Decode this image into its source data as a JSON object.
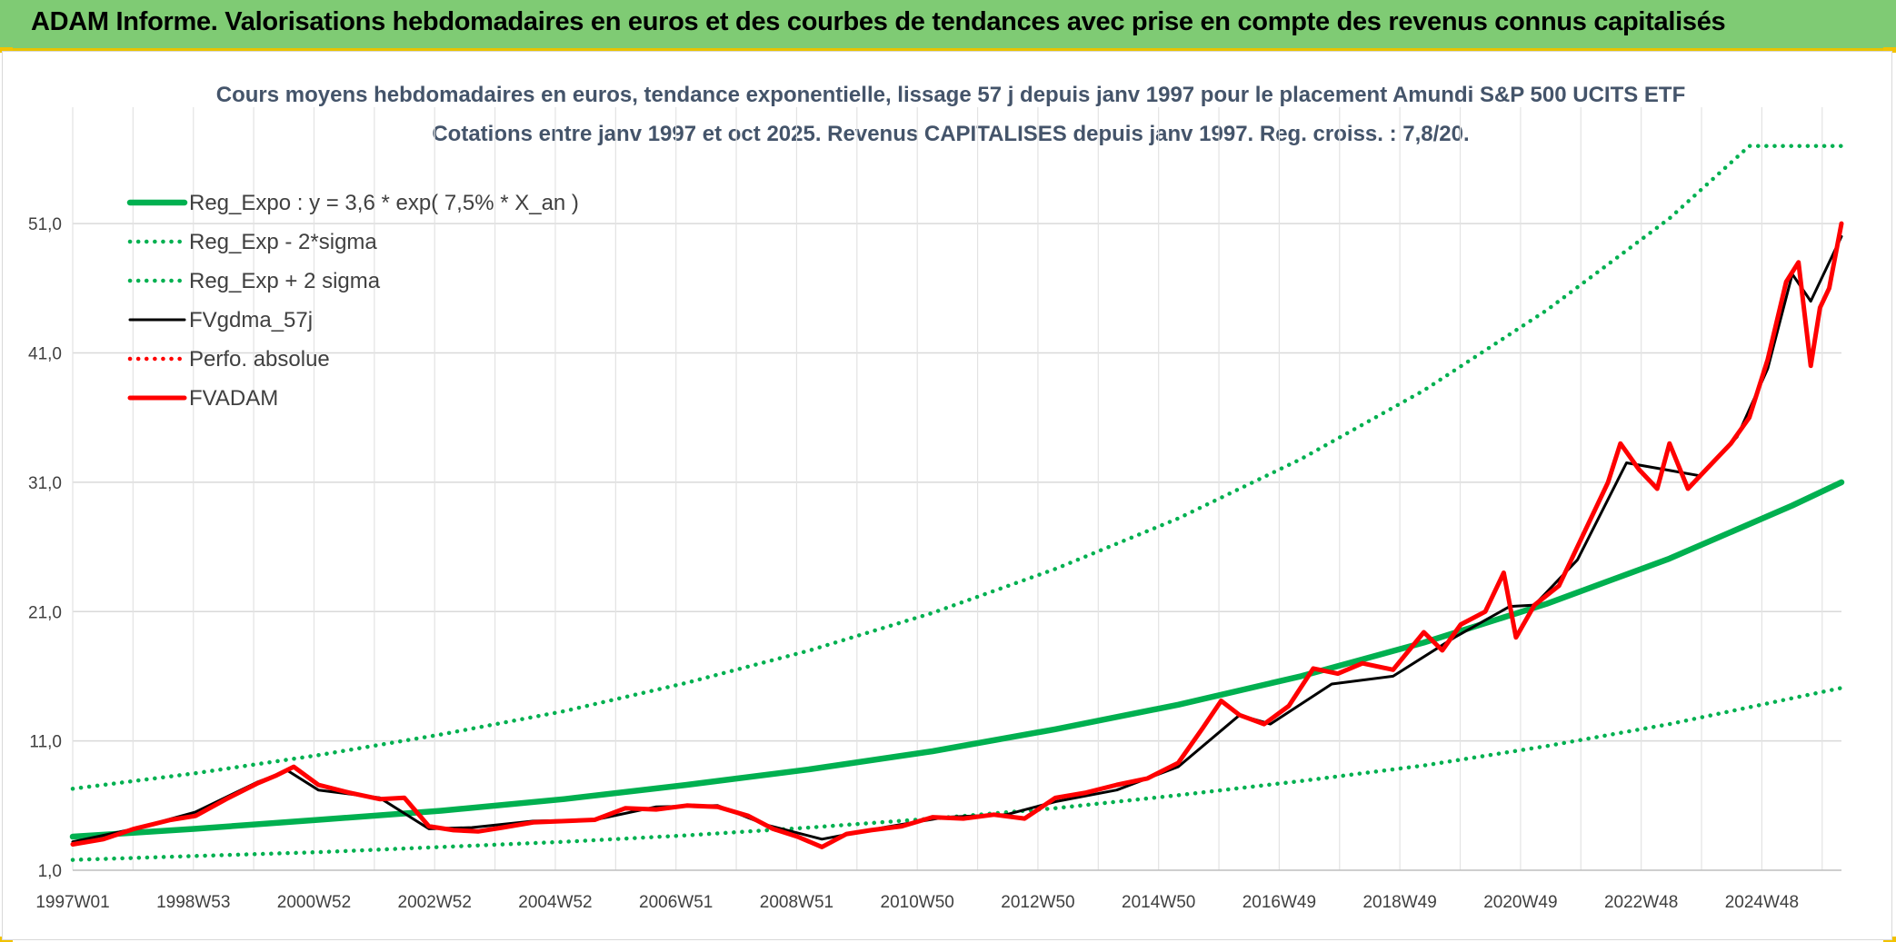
{
  "header": {
    "banner_title": "ADAM Informe. Valorisations hebdomadaires en euros et des courbes de tendances avec prise en compte des revenus connus capitalisés"
  },
  "colors": {
    "banner": "#7fcb74",
    "accent_yellow": "#f2c200",
    "trend": "#00b050",
    "gdma": "#000000",
    "adam": "#ff0000",
    "title_text": "#44546a"
  },
  "chart_data": {
    "type": "line",
    "title": "Cours moyens hebdomadaires en euros, tendance exponentielle, lissage 57 j depuis janv 1997 pour le placement Amundi S&P 500 UCITS ETF",
    "subtitle": "Cotations entre janv 1997 et oct 2025. Revenus CAPITALISES depuis janv 1997. Reg. croiss. : 7,8/20.",
    "x_tick_labels": [
      "1997W01",
      "1998W53",
      "2000W52",
      "2002W52",
      "2004W52",
      "2006W51",
      "2008W51",
      "2010W50",
      "2012W50",
      "2014W50",
      "2016W49",
      "2018W49",
      "2020W49",
      "2022W48",
      "2024W48"
    ],
    "x_range_years": [
      1997.0,
      2025.8
    ],
    "y_tick_labels": [
      "1,0",
      "11,0",
      "21,0",
      "31,0",
      "41,0",
      "51,0"
    ],
    "ylim": [
      1,
      60
    ],
    "grid": true,
    "legend_position": "top-left",
    "series": [
      {
        "name": "Reg_Expo : y = 3,6 * exp( 7,5% *  X_an )",
        "style": "solid-thick",
        "color": "#00b050",
        "points": [
          [
            1997,
            3.6
          ],
          [
            1999,
            4.2
          ],
          [
            2001,
            4.9
          ],
          [
            2003,
            5.6
          ],
          [
            2005,
            6.5
          ],
          [
            2007,
            7.6
          ],
          [
            2009,
            8.8
          ],
          [
            2011,
            10.2
          ],
          [
            2013,
            11.9
          ],
          [
            2015,
            13.8
          ],
          [
            2017,
            16.0
          ],
          [
            2019,
            18.6
          ],
          [
            2021,
            21.6
          ],
          [
            2023,
            25.1
          ],
          [
            2025,
            29.2
          ],
          [
            2025.8,
            31.0
          ]
        ]
      },
      {
        "name": "Reg_Exp - 2*sigma",
        "style": "dotted",
        "color": "#00b050",
        "points": [
          [
            1997,
            1.8
          ],
          [
            1999,
            2.1
          ],
          [
            2001,
            2.4
          ],
          [
            2003,
            2.8
          ],
          [
            2005,
            3.2
          ],
          [
            2007,
            3.7
          ],
          [
            2009,
            4.3
          ],
          [
            2011,
            5.0
          ],
          [
            2013,
            5.8
          ],
          [
            2015,
            6.8
          ],
          [
            2017,
            7.9
          ],
          [
            2019,
            9.1
          ],
          [
            2021,
            10.6
          ],
          [
            2023,
            12.3
          ],
          [
            2025,
            14.3
          ],
          [
            2025.8,
            15.1
          ]
        ]
      },
      {
        "name": "Reg_Exp + 2 sigma",
        "style": "dotted",
        "color": "#00b050",
        "points": [
          [
            1997,
            7.3
          ],
          [
            1999,
            8.5
          ],
          [
            2001,
            9.9
          ],
          [
            2003,
            11.5
          ],
          [
            2005,
            13.3
          ],
          [
            2007,
            15.5
          ],
          [
            2009,
            18.0
          ],
          [
            2011,
            20.9
          ],
          [
            2013,
            24.3
          ],
          [
            2015,
            28.2
          ],
          [
            2017,
            32.8
          ],
          [
            2019,
            38.1
          ],
          [
            2021,
            44.3
          ],
          [
            2023,
            51.4
          ],
          [
            2024.3,
            57.0
          ],
          [
            2025.8,
            57.0
          ]
        ]
      },
      {
        "name": "FVgdma_57j",
        "style": "solid",
        "color": "#000000",
        "points": [
          [
            1997,
            3.2
          ],
          [
            1998,
            4.2
          ],
          [
            1999,
            5.5
          ],
          [
            2000,
            7.8
          ],
          [
            2000.5,
            8.7
          ],
          [
            2001,
            7.2
          ],
          [
            2002,
            6.6
          ],
          [
            2002.8,
            4.2
          ],
          [
            2003.5,
            4.3
          ],
          [
            2004.5,
            4.8
          ],
          [
            2005.5,
            4.9
          ],
          [
            2006.5,
            5.9
          ],
          [
            2007.5,
            6.0
          ],
          [
            2008.3,
            4.5
          ],
          [
            2009.2,
            3.4
          ],
          [
            2010.2,
            4.3
          ],
          [
            2011.2,
            5.1
          ],
          [
            2012.2,
            5.3
          ],
          [
            2013,
            6.3
          ],
          [
            2014,
            7.2
          ],
          [
            2015,
            9.0
          ],
          [
            2016,
            13.0
          ],
          [
            2016.5,
            12.3
          ],
          [
            2017.5,
            15.4
          ],
          [
            2018.5,
            16.0
          ],
          [
            2019.5,
            19.0
          ],
          [
            2020.4,
            21.4
          ],
          [
            2020.8,
            21.5
          ],
          [
            2021.5,
            25.0
          ],
          [
            2022.3,
            32.5
          ],
          [
            2022.9,
            32.0
          ],
          [
            2023.5,
            31.5
          ],
          [
            2024.1,
            34.5
          ],
          [
            2024.6,
            39.8
          ],
          [
            2025.0,
            47.1
          ],
          [
            2025.3,
            45.0
          ],
          [
            2025.8,
            50.0
          ]
        ]
      },
      {
        "name": "Perfo. absolue",
        "style": "dotted",
        "color": "#ff0000",
        "points": []
      },
      {
        "name": "FVADAM",
        "style": "solid-thick",
        "color": "#ff0000",
        "points": [
          [
            1997,
            3.0
          ],
          [
            1997.5,
            3.4
          ],
          [
            1998,
            4.2
          ],
          [
            1998.6,
            4.9
          ],
          [
            1999,
            5.2
          ],
          [
            1999.5,
            6.5
          ],
          [
            2000,
            7.7
          ],
          [
            2000.3,
            8.3
          ],
          [
            2000.6,
            9.0
          ],
          [
            2001,
            7.6
          ],
          [
            2001.5,
            7.0
          ],
          [
            2002,
            6.5
          ],
          [
            2002.4,
            6.6
          ],
          [
            2002.8,
            4.4
          ],
          [
            2003.2,
            4.1
          ],
          [
            2003.6,
            4.0
          ],
          [
            2004,
            4.3
          ],
          [
            2004.5,
            4.7
          ],
          [
            2005,
            4.8
          ],
          [
            2005.5,
            4.9
          ],
          [
            2006,
            5.8
          ],
          [
            2006.5,
            5.7
          ],
          [
            2007,
            6.0
          ],
          [
            2007.5,
            5.9
          ],
          [
            2008,
            5.2
          ],
          [
            2008.4,
            4.2
          ],
          [
            2008.8,
            3.6
          ],
          [
            2009.2,
            2.8
          ],
          [
            2009.6,
            3.8
          ],
          [
            2010,
            4.1
          ],
          [
            2010.5,
            4.4
          ],
          [
            2011,
            5.1
          ],
          [
            2011.5,
            5.0
          ],
          [
            2012,
            5.3
          ],
          [
            2012.5,
            5.0
          ],
          [
            2013,
            6.6
          ],
          [
            2013.5,
            7.0
          ],
          [
            2014,
            7.6
          ],
          [
            2014.5,
            8.1
          ],
          [
            2015,
            9.3
          ],
          [
            2015.4,
            12.0
          ],
          [
            2015.7,
            14.1
          ],
          [
            2016,
            13.0
          ],
          [
            2016.4,
            12.3
          ],
          [
            2016.8,
            13.7
          ],
          [
            2017.2,
            16.6
          ],
          [
            2017.6,
            16.2
          ],
          [
            2018,
            17.0
          ],
          [
            2018.5,
            16.5
          ],
          [
            2019,
            19.4
          ],
          [
            2019.3,
            18.0
          ],
          [
            2019.6,
            20.0
          ],
          [
            2020,
            21.0
          ],
          [
            2020.3,
            24.0
          ],
          [
            2020.5,
            19.0
          ],
          [
            2020.8,
            21.5
          ],
          [
            2021.2,
            23.0
          ],
          [
            2021.6,
            27.0
          ],
          [
            2022,
            31.0
          ],
          [
            2022.2,
            34.0
          ],
          [
            2022.5,
            32.0
          ],
          [
            2022.8,
            30.5
          ],
          [
            2023,
            34.0
          ],
          [
            2023.3,
            30.5
          ],
          [
            2023.6,
            32.0
          ],
          [
            2024,
            34.0
          ],
          [
            2024.3,
            36.0
          ],
          [
            2024.6,
            40.5
          ],
          [
            2024.9,
            46.5
          ],
          [
            2025.1,
            48.0
          ],
          [
            2025.3,
            40.0
          ],
          [
            2025.45,
            44.5
          ],
          [
            2025.6,
            46.0
          ],
          [
            2025.8,
            51.0
          ]
        ]
      }
    ]
  }
}
